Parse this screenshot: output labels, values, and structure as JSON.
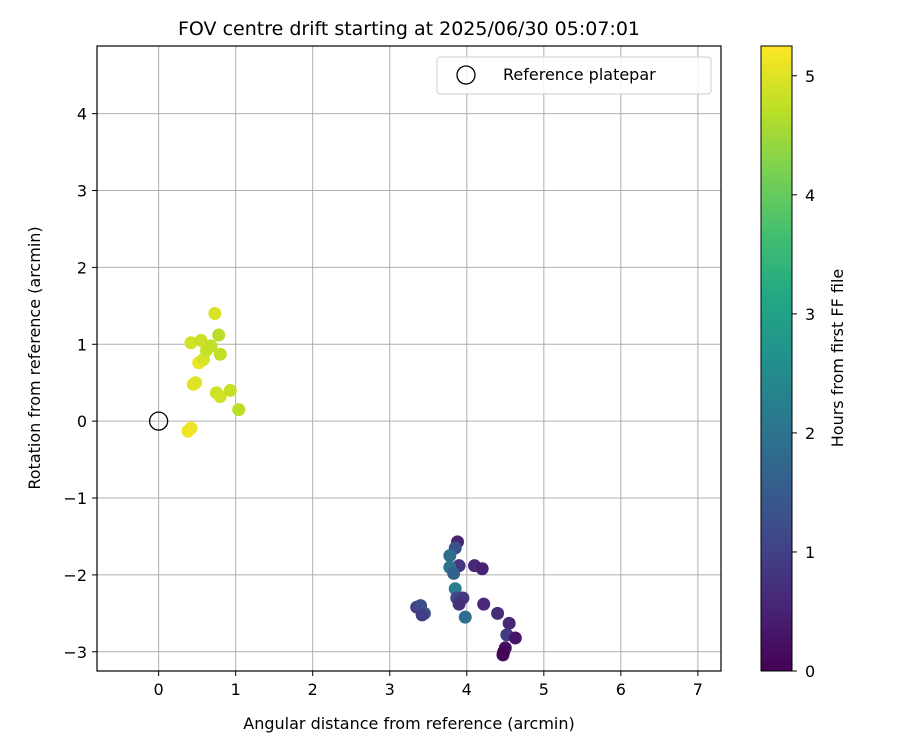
{
  "chart_data": {
    "type": "scatter",
    "title": "FOV centre drift starting at 2025/06/30 05:07:01",
    "xlabel": "Angular distance from reference (arcmin)",
    "ylabel": "Rotation from reference (arcmin)",
    "xlim": [
      -0.8,
      7.3
    ],
    "ylim": [
      -3.25,
      4.88
    ],
    "xticks": [
      "0",
      "1",
      "2",
      "3",
      "4",
      "5",
      "6",
      "7"
    ],
    "yticks": [
      "−3",
      "−2",
      "−1",
      "0",
      "1",
      "2",
      "3",
      "4"
    ],
    "grid": true,
    "legend_position": "top-right",
    "reference": {
      "name": "Reference platepar",
      "x": 0,
      "y": 0
    },
    "colorbar": {
      "label": "Hours from first FF file",
      "range": [
        0,
        5.25
      ],
      "ticks": [
        "0",
        "1",
        "2",
        "3",
        "4",
        "5"
      ],
      "colormap": "viridis"
    },
    "points": [
      {
        "x": 0.38,
        "y": -0.13,
        "t": 5.15
      },
      {
        "x": 0.42,
        "y": -0.09,
        "t": 5.12
      },
      {
        "x": 0.45,
        "y": 0.48,
        "t": 5.05
      },
      {
        "x": 0.48,
        "y": 0.5,
        "t": 5.0
      },
      {
        "x": 0.52,
        "y": 0.76,
        "t": 5.1
      },
      {
        "x": 0.58,
        "y": 0.8,
        "t": 4.95
      },
      {
        "x": 0.42,
        "y": 1.02,
        "t": 4.9
      },
      {
        "x": 0.55,
        "y": 1.05,
        "t": 4.85
      },
      {
        "x": 0.62,
        "y": 0.92,
        "t": 4.8
      },
      {
        "x": 0.68,
        "y": 0.98,
        "t": 4.75
      },
      {
        "x": 0.73,
        "y": 1.4,
        "t": 4.95
      },
      {
        "x": 0.78,
        "y": 1.12,
        "t": 4.7
      },
      {
        "x": 0.8,
        "y": 0.87,
        "t": 4.75
      },
      {
        "x": 0.75,
        "y": 0.37,
        "t": 4.85
      },
      {
        "x": 0.8,
        "y": 0.32,
        "t": 4.9
      },
      {
        "x": 0.93,
        "y": 0.4,
        "t": 4.8
      },
      {
        "x": 1.04,
        "y": 0.15,
        "t": 4.7
      },
      {
        "x": 3.88,
        "y": -1.57,
        "t": 0.55
      },
      {
        "x": 3.85,
        "y": -1.65,
        "t": 1.3
      },
      {
        "x": 3.78,
        "y": -1.75,
        "t": 1.9
      },
      {
        "x": 3.9,
        "y": -1.88,
        "t": 0.8
      },
      {
        "x": 4.1,
        "y": -1.88,
        "t": 0.6
      },
      {
        "x": 4.2,
        "y": -1.92,
        "t": 0.5
      },
      {
        "x": 3.78,
        "y": -1.9,
        "t": 2.0
      },
      {
        "x": 3.83,
        "y": -1.98,
        "t": 1.6
      },
      {
        "x": 3.85,
        "y": -2.18,
        "t": 2.2
      },
      {
        "x": 3.87,
        "y": -2.3,
        "t": 1.1
      },
      {
        "x": 3.95,
        "y": -2.3,
        "t": 0.9
      },
      {
        "x": 3.9,
        "y": -2.38,
        "t": 0.7
      },
      {
        "x": 4.22,
        "y": -2.38,
        "t": 0.6
      },
      {
        "x": 3.35,
        "y": -2.42,
        "t": 1.0
      },
      {
        "x": 3.4,
        "y": -2.4,
        "t": 1.2
      },
      {
        "x": 3.45,
        "y": -2.5,
        "t": 1.35
      },
      {
        "x": 3.42,
        "y": -2.52,
        "t": 0.95
      },
      {
        "x": 3.98,
        "y": -2.55,
        "t": 1.9
      },
      {
        "x": 4.4,
        "y": -2.5,
        "t": 0.65
      },
      {
        "x": 4.55,
        "y": -2.63,
        "t": 0.55
      },
      {
        "x": 4.52,
        "y": -2.78,
        "t": 0.9
      },
      {
        "x": 4.63,
        "y": -2.82,
        "t": 0.3
      },
      {
        "x": 4.5,
        "y": -2.95,
        "t": 0.2
      },
      {
        "x": 4.48,
        "y": -3.0,
        "t": 0.15
      },
      {
        "x": 4.47,
        "y": -3.04,
        "t": 0.05
      }
    ]
  }
}
